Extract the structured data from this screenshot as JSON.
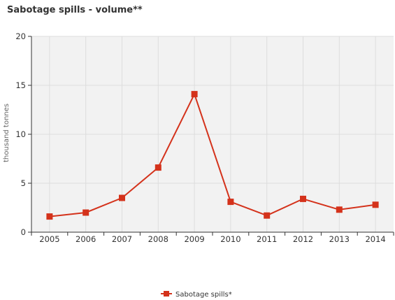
{
  "chart_data": {
    "type": "line",
    "title": "Sabotage spills - volume**",
    "xlabel": "",
    "ylabel": "thousand tonnes",
    "categories": [
      "2005",
      "2006",
      "2007",
      "2008",
      "2009",
      "2010",
      "2011",
      "2012",
      "2013",
      "2014"
    ],
    "series": [
      {
        "name": "Sabotage spills*",
        "values": [
          1.6,
          2.0,
          3.5,
          6.6,
          14.1,
          3.1,
          1.7,
          3.4,
          2.3,
          2.8
        ]
      }
    ],
    "ylim": [
      0,
      20
    ],
    "yticks": [
      0,
      5,
      10,
      15,
      20
    ],
    "grid": true,
    "legend_position": "bottom-center",
    "series_color": "#d4321b",
    "plot_background": "#f2f2f2"
  }
}
